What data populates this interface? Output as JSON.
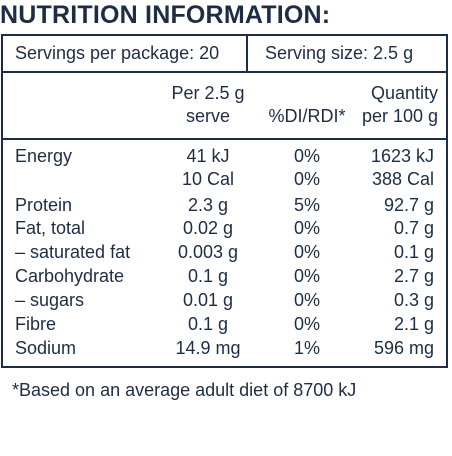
{
  "title": "NUTRITION INFORMATION:",
  "servings_per_package": "Servings per package: 20",
  "serving_size": "Serving size: 2.5 g",
  "headers": {
    "per_serve_line1": "Per 2.5 g",
    "per_serve_line2": "serve",
    "di": "%DI/RDI*",
    "qty_line1": "Quantity",
    "qty_line2": "per 100 g"
  },
  "rows": [
    {
      "name": "Energy",
      "per_serve": "41 kJ",
      "di": "0%",
      "per_100g": "1623 kJ"
    },
    {
      "name": "",
      "per_serve": "10 Cal",
      "di": "0%",
      "per_100g": "388 Cal"
    },
    {
      "name": "Protein",
      "per_serve": "2.3 g",
      "di": "5%",
      "per_100g": "92.7 g"
    },
    {
      "name": "Fat, total",
      "per_serve": "0.02 g",
      "di": "0%",
      "per_100g": "0.7 g"
    },
    {
      "name": "– saturated fat",
      "per_serve": "0.003 g",
      "di": "0%",
      "per_100g": "0.1 g"
    },
    {
      "name": "Carbohydrate",
      "per_serve": "0.1 g",
      "di": "0%",
      "per_100g": "2.7 g"
    },
    {
      "name": "– sugars",
      "per_serve": "0.01 g",
      "di": "0%",
      "per_100g": "0.3 g"
    },
    {
      "name": "Fibre",
      "per_serve": "0.1 g",
      "di": "0%",
      "per_100g": "2.1 g"
    },
    {
      "name": "Sodium",
      "per_serve": "14.9 mg",
      "di": "1%",
      "per_100g": "596 mg"
    }
  ],
  "footnote": "*Based on an average adult diet of 8700 kJ"
}
